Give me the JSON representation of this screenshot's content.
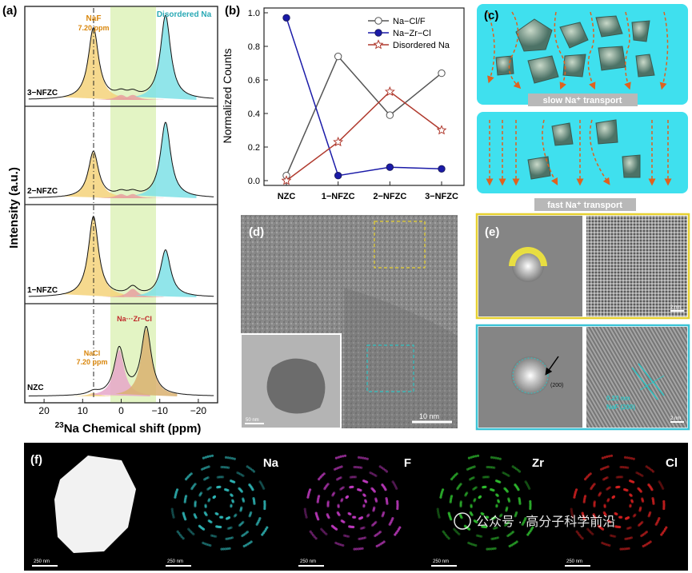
{
  "panel_a": {
    "label": "(a)",
    "ylabel": "Intensity (a.u.)",
    "xlabel_iso": "23",
    "xlabel_rest": "Na Chemical shift (ppm)",
    "xticks": [
      "20",
      "10",
      "0",
      "−10",
      "−20"
    ],
    "nmr_spectra": [
      {
        "sample": "3−NFZC",
        "peaks": [
          {
            "shift": 7.2,
            "height": 0.85
          },
          {
            "shift": 0,
            "height": 0.06
          },
          {
            "shift": -3,
            "height": 0.06
          },
          {
            "shift": -11.5,
            "height": 1.0
          }
        ]
      },
      {
        "sample": "2−NFZC",
        "peaks": [
          {
            "shift": 7.2,
            "height": 0.55
          },
          {
            "shift": 0,
            "height": 0.05
          },
          {
            "shift": -3,
            "height": 0.05
          },
          {
            "shift": -11.5,
            "height": 0.9
          }
        ]
      },
      {
        "sample": "1−NFZC",
        "peaks": [
          {
            "shift": 7.2,
            "height": 0.95
          },
          {
            "shift": -3,
            "height": 0.1
          },
          {
            "shift": -11.5,
            "height": 0.55
          }
        ]
      },
      {
        "sample": "NZC",
        "peaks": [
          {
            "shift": 7.2,
            "height": 0.04
          },
          {
            "shift": 0.5,
            "height": 0.55
          },
          {
            "shift": -6.5,
            "height": 0.8
          }
        ]
      }
    ],
    "annotations": {
      "naf": "NaF",
      "naf_ppm": "7.20 ppm",
      "disordered": "Disordered Na",
      "nacl": "NaCl",
      "nacl_ppm": "7.20 ppm",
      "nazrcl": "Na···Zr−Cl"
    },
    "colors": {
      "naf_fill": "#f5d27a",
      "disordered_fill": "#7ee0e6",
      "nazrcl_fill": "#d9b070",
      "highlight": "#e3f4c4"
    }
  },
  "chart_data": {
    "type": "line",
    "title": "",
    "categories": [
      "NZC",
      "1−NFZC",
      "2−NFZC",
      "3−NFZC"
    ],
    "series": [
      {
        "name": "Na−Cl/F",
        "values": [
          0.03,
          0.74,
          0.39,
          0.64
        ],
        "color": "#555555",
        "marker": "circle"
      },
      {
        "name": "Na−Zr−Cl",
        "values": [
          0.97,
          0.03,
          0.08,
          0.07
        ],
        "color": "#1a1aa8",
        "marker": "filled-circle"
      },
      {
        "name": "Disordered Na",
        "values": [
          0.0,
          0.23,
          0.53,
          0.3
        ],
        "color": "#b03a2e",
        "marker": "star"
      }
    ],
    "xlabel": "",
    "ylabel": "Normalized Counts",
    "ylim": [
      0,
      1.0
    ],
    "yticks": [
      "0.0",
      "0.2",
      "0.4",
      "0.6",
      "0.8",
      "1.0"
    ],
    "label": "(b)",
    "legend_position": "top-right"
  },
  "panel_c": {
    "label": "(c)",
    "slow": "slow Na⁺ transport",
    "fast": "fast Na⁺ transport",
    "bg": "#3fe0ee"
  },
  "panel_d": {
    "label": "(d)",
    "scale": "10 nm",
    "inset_scale": "50 nm"
  },
  "panel_e": {
    "label": "(e)",
    "scale_top": "2 nm",
    "fft_index": "(200)",
    "d_spacing": "0.23 nm",
    "phase": "NaF (200)",
    "scale_bottom": "2 nm"
  },
  "panel_f": {
    "label": "(f)",
    "maps": [
      {
        "element": "",
        "scale": "250 nm",
        "color": "#ffffff"
      },
      {
        "element": "Na",
        "scale": "250 nm",
        "color": "#2fb8b8"
      },
      {
        "element": "F",
        "scale": "250 nm",
        "color": "#c23ac2"
      },
      {
        "element": "Zr",
        "scale": "250 nm",
        "color": "#2fbf2f"
      },
      {
        "element": "Cl",
        "scale": "250 nm",
        "color": "#d42020"
      }
    ]
  },
  "watermark": "公众号 · 高分子科学前沿"
}
